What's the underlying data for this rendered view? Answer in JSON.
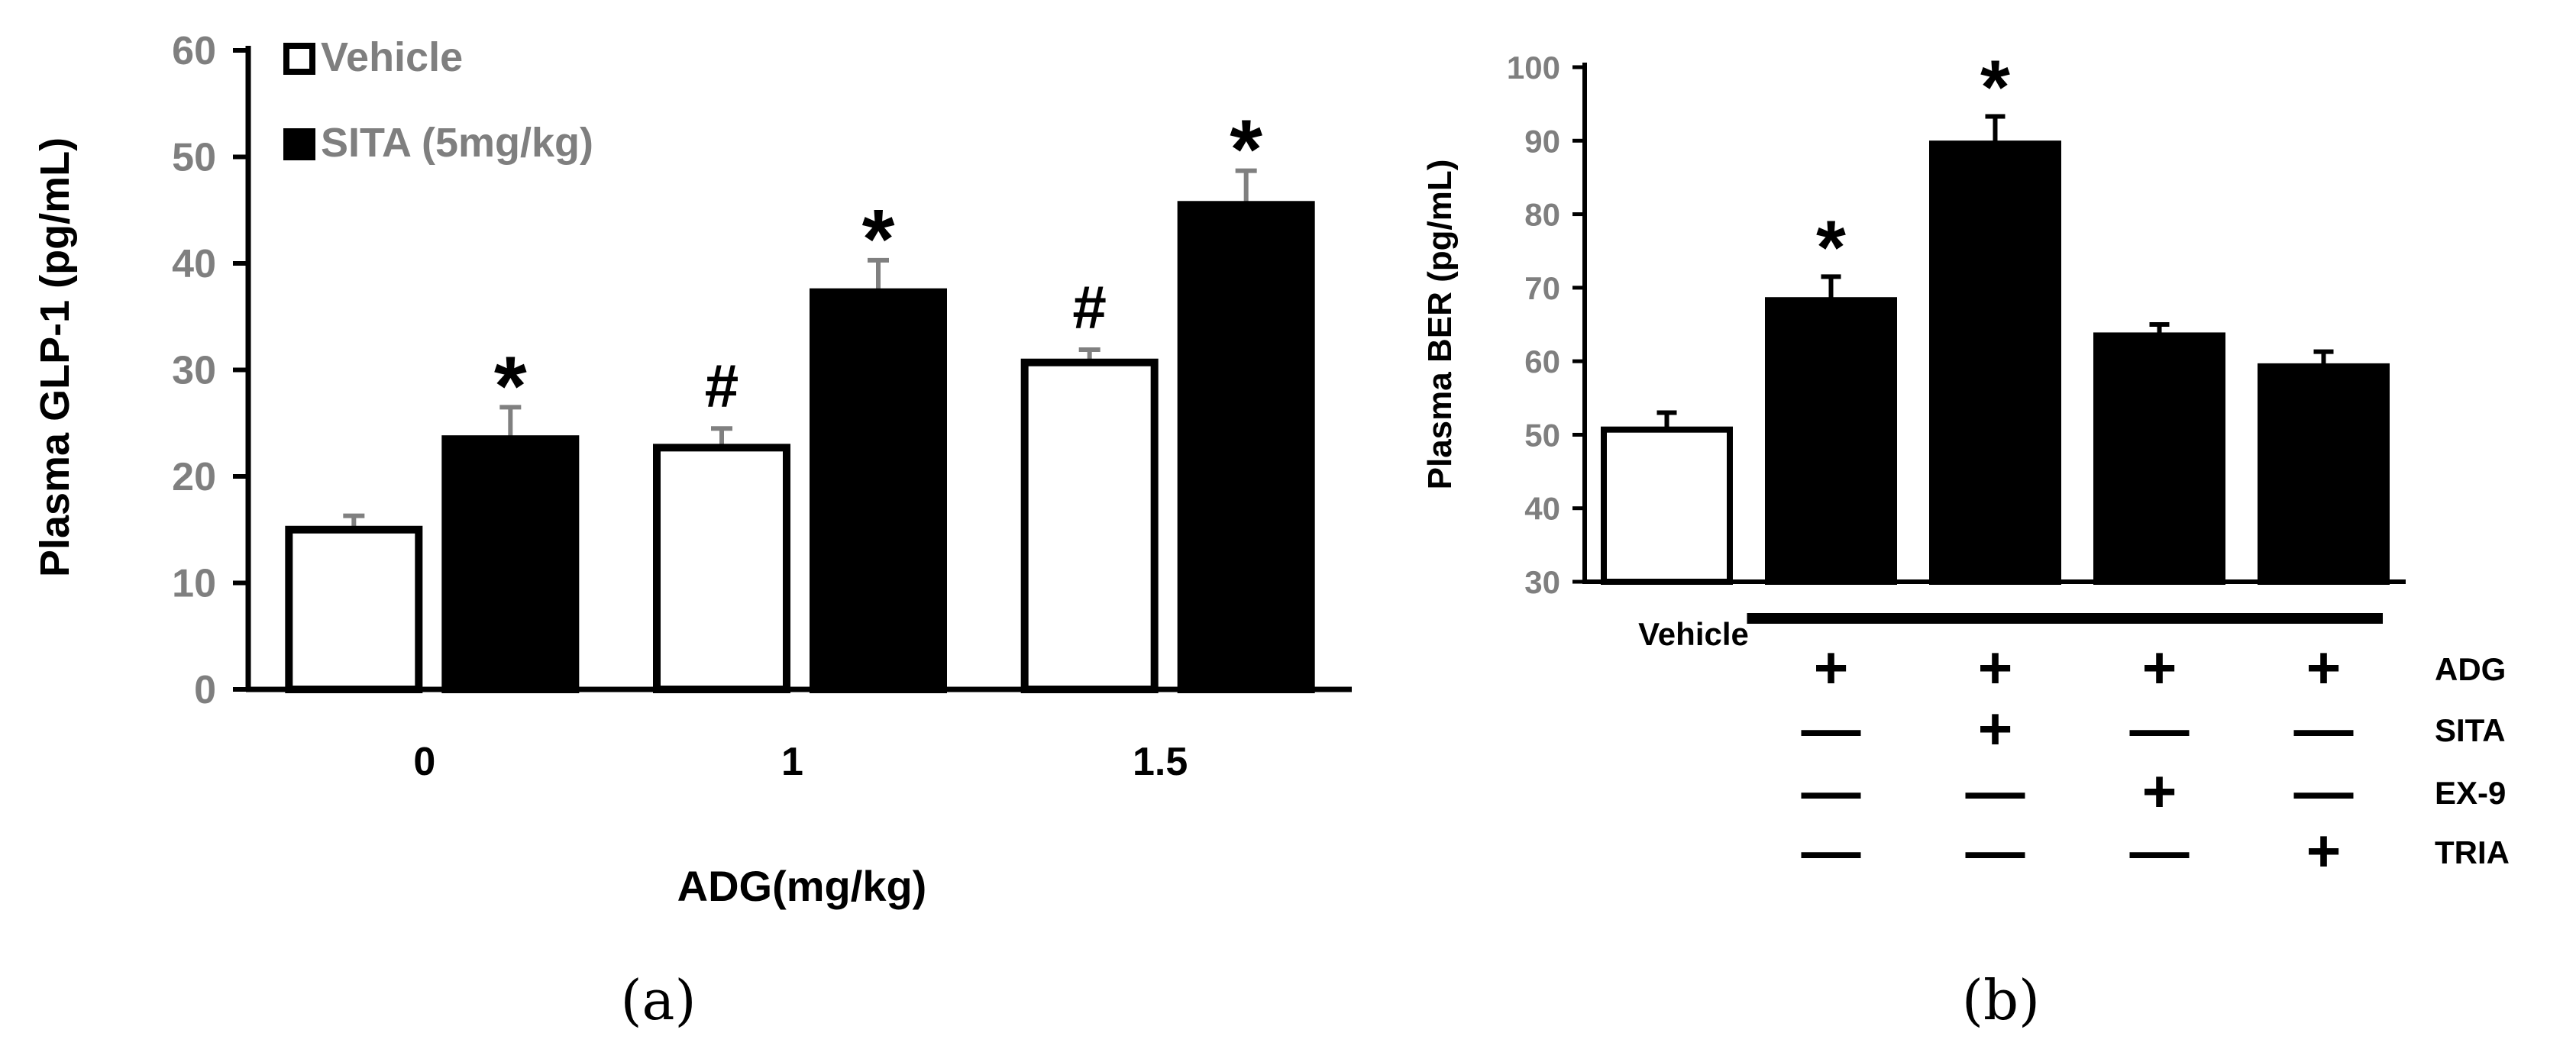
{
  "chart_data": [
    {
      "panel": "a",
      "type": "bar",
      "caption": "(a)",
      "xlabel": "ADG(mg/kg)",
      "ylabel": "Plasma GLP-1 (pg/mL)",
      "ylim": [
        0,
        60
      ],
      "yticks": [
        0,
        10,
        20,
        30,
        40,
        50,
        60
      ],
      "categories": [
        "0",
        "1",
        "1.5"
      ],
      "legend_position": "top-left",
      "series": [
        {
          "name": "Vehicle",
          "fill": "#ffffff",
          "values": [
            15,
            22.7,
            30.7
          ],
          "errors": [
            1.3,
            1.8,
            1.2
          ],
          "marks": [
            "",
            "#",
            "#"
          ]
        },
        {
          "name": "SITA (5mg/kg)",
          "fill": "#000000",
          "values": [
            23.5,
            37.3,
            45.5
          ],
          "errors": [
            3,
            3,
            3.2
          ],
          "marks": [
            "*",
            "*",
            "*"
          ]
        }
      ]
    },
    {
      "panel": "b",
      "type": "bar",
      "caption": "(b)",
      "ylabel": "Plasma BER (pg/mL)",
      "ylim": [
        30,
        100
      ],
      "yticks": [
        30,
        40,
        50,
        60,
        70,
        80,
        90,
        100
      ],
      "bars": [
        {
          "label": "Vehicle",
          "value": 50.7,
          "error": 2.3,
          "fill": "#ffffff",
          "mark": ""
        },
        {
          "label": "",
          "value": 68.3,
          "error": 3.2,
          "fill": "#000000",
          "mark": "*"
        },
        {
          "label": "",
          "value": 89.6,
          "error": 3.7,
          "fill": "#000000",
          "mark": "*"
        },
        {
          "label": "",
          "value": 63.5,
          "error": 1.5,
          "fill": "#000000",
          "mark": ""
        },
        {
          "label": "",
          "value": 59.3,
          "error": 2.0,
          "fill": "#000000",
          "mark": ""
        }
      ],
      "treatments": [
        {
          "name": "ADG",
          "signs": [
            "+",
            "+",
            "+",
            "+"
          ]
        },
        {
          "name": "SITA",
          "signs": [
            "—",
            "+",
            "—",
            "—"
          ]
        },
        {
          "name": "EX-9",
          "signs": [
            "—",
            "—",
            "+",
            "—"
          ]
        },
        {
          "name": "TRIA",
          "signs": [
            "—",
            "—",
            "—",
            "+"
          ]
        }
      ]
    }
  ],
  "colors": {
    "axis_text": "#7f7f7f",
    "error_a": "#808080",
    "ink": "#000000"
  }
}
